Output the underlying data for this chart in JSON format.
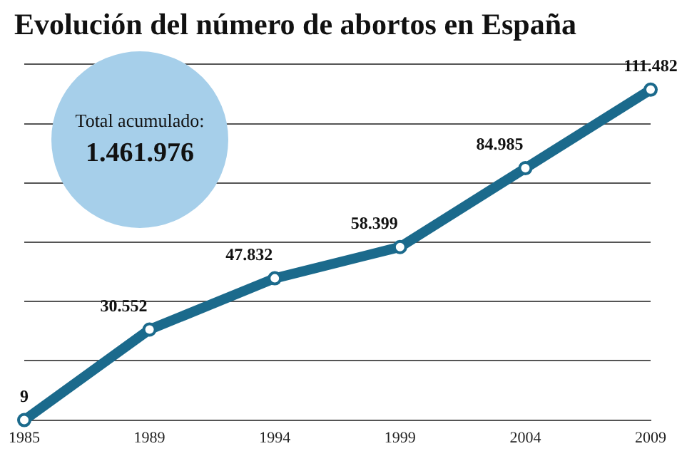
{
  "chart_data": {
    "type": "line",
    "title": "Evolución del número de abortos en España",
    "categories": [
      "1985",
      "1989",
      "1994",
      "1999",
      "2004",
      "2009"
    ],
    "series": [
      {
        "color": "#1b6a8c",
        "values": [
          9,
          30552,
          47832,
          58399,
          84985,
          111482
        ],
        "value_labels": [
          "9",
          "30.552",
          "47.832",
          "58.399",
          "84.985",
          "111.482"
        ]
      }
    ],
    "ylim": [
      0,
      120000
    ],
    "yticks": [
      {
        "value": 0,
        "label": null
      },
      {
        "value": 20000,
        "label": null
      },
      {
        "value": 40000,
        "label": null
      },
      {
        "value": 60000,
        "label": null
      },
      {
        "value": 80000,
        "label": null
      },
      {
        "value": 100000,
        "label": null
      },
      {
        "value": 120000,
        "label": null
      }
    ],
    "tick_labels": "x",
    "grid": "y",
    "marker": "circle",
    "line_style": "solid",
    "legend": false,
    "annotations": [
      "Total acumulado:",
      "1.461.976"
    ]
  }
}
